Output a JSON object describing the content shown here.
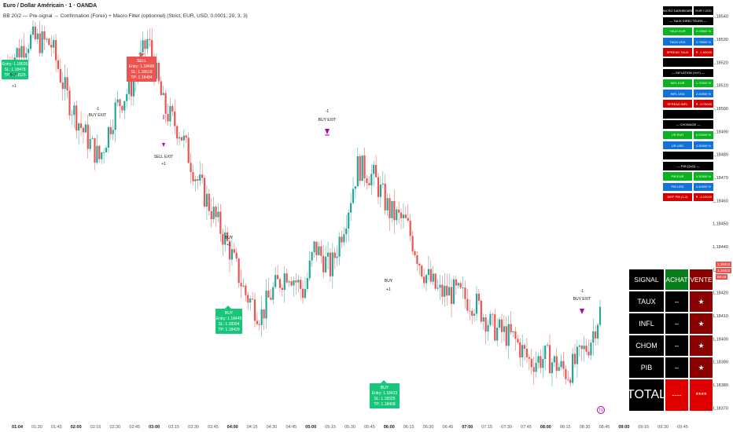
{
  "header": {
    "title": "Euro / Dollar Américain · 1 · OANDA",
    "indicator": "BB 20/2 — Pre-signal → Confirmation (Forex) + Macro Filter (optionnel) (Strict, EUR, USD, 0,0001, 20, 3, 3)"
  },
  "colors": {
    "up": "#26a69a",
    "down": "#ef5350",
    "buy_label": "#18c67a",
    "sell_label": "#ef5350",
    "exit": "#b000b0",
    "green_cell": "#09b21f",
    "blue_cell": "#1272d8",
    "red_cell": "#d40000"
  },
  "chart_data": {
    "type": "candlestick",
    "symbol": "EUR/USD",
    "timeframe": "1",
    "ylim": [
      1.18365,
      1.18545
    ],
    "y_ticks": [
      "1,18540",
      "1,18530",
      "1,18520",
      "1,18510",
      "1,18500",
      "1,18490",
      "1,18480",
      "1,18470",
      "1,18460",
      "1,18450",
      "1,18440",
      "1,18430",
      "1,18420",
      "1,18410",
      "1,18400",
      "1,18390",
      "1,18380",
      "1,18370"
    ],
    "x_ticks": [
      "01:04",
      "01:30",
      "01:45",
      "02:00",
      "02:15",
      "02:30",
      "02:45",
      "03:00",
      "03:15",
      "03:30",
      "03:45",
      "04:00",
      "04:15",
      "04:30",
      "04:45",
      "05:00",
      "05:15",
      "05:30",
      "05:45",
      "06:00",
      "06:15",
      "06:30",
      "06:45",
      "07:00",
      "07:15",
      "07:30",
      "07:45",
      "08:00",
      "08:15",
      "08:30",
      "08:45",
      "09:00",
      "09:15",
      "09:30",
      "09:45"
    ],
    "price_path": [
      [
        0,
        1.1852
      ],
      [
        4,
        1.1853
      ],
      [
        8,
        1.18528
      ],
      [
        11,
        1.18505
      ],
      [
        14,
        1.1849
      ],
      [
        17,
        1.18478
      ],
      [
        20,
        1.185
      ],
      [
        23,
        1.1851
      ],
      [
        26,
        1.1853
      ],
      [
        29,
        1.185
      ],
      [
        32,
        1.1849
      ],
      [
        35,
        1.1847
      ],
      [
        38,
        1.18455
      ],
      [
        41,
        1.1844
      ],
      [
        44,
        1.1842
      ],
      [
        47,
        1.1841
      ],
      [
        49,
        1.1842
      ],
      [
        52,
        1.1843
      ],
      [
        55,
        1.1842
      ],
      [
        57,
        1.1844
      ],
      [
        60,
        1.1843
      ],
      [
        63,
        1.18455
      ],
      [
        65,
        1.18475
      ],
      [
        68,
        1.1847
      ],
      [
        71,
        1.18455
      ],
      [
        74,
        1.1845
      ],
      [
        77,
        1.1843
      ],
      [
        80,
        1.1842
      ],
      [
        83,
        1.1842
      ],
      [
        87,
        1.18415
      ],
      [
        90,
        1.18405
      ],
      [
        94,
        1.184
      ],
      [
        97,
        1.1839
      ],
      [
        100,
        1.18392
      ],
      [
        104,
        1.18385
      ],
      [
        108,
        1.18398
      ],
      [
        110,
        1.18412
      ]
    ],
    "tradingview_notes": "price_path x values are minutes after 06:45? no — indexes in 1-minute bars from 01:04 sampled every ~5 bars",
    "last_price": "1,18412",
    "last_price_countdown": "00:16",
    "last_price_prev": "1,18412",
    "annotations": [
      {
        "type": "buy",
        "text": "Entry: 1.18526\nSL: 1.18478\nTP: 1.18525"
      },
      {
        "type": "sell",
        "text": "SELL\nEntry: 1.18488\nSL: 1.18518\nTP: 1.18484"
      },
      {
        "type": "exit",
        "text": "BUY EXIT"
      },
      {
        "type": "exit",
        "text": "SELL EXIT"
      },
      {
        "type": "exit",
        "text": "BUY EXIT"
      },
      {
        "type": "buy_small",
        "text": "BUY"
      },
      {
        "type": "buy_small",
        "text": "BUY"
      },
      {
        "type": "buy",
        "text": "BUY\nEntry: 1.18445\nSL: 1.18394\nTP: 1.18429"
      },
      {
        "type": "buy",
        "text": "BUY\nEntry: 1.18423\nSL: 1.18325\nTP: 1.18408"
      },
      {
        "type": "exit",
        "text": "BUY EXIT"
      }
    ]
  },
  "chart_labels": {
    "b1_lines": [
      "Entry: 1.18526",
      "SL: 1.18478",
      "TP: 1.18525"
    ],
    "s1_lines": [
      "SELL",
      "Entry: 1.18488",
      "SL: 1.18518",
      "TP: 1.18484"
    ],
    "b2_lines": [
      "BUY",
      "Entry: 1.18445",
      "SL: 1.18394",
      "TP: 1.18429"
    ],
    "b3_lines": [
      "BUY",
      "Entry: 1.18423",
      "SL: 1.18325",
      "TP: 1.18408"
    ],
    "buy": "BUY",
    "buy_exit": "BUY EXIT",
    "sell_exit": "SELL EXIT",
    "plus1": "+1",
    "minus1": "-1",
    "tv_logo": "TV"
  },
  "macro": {
    "header": [
      "MACRO DASHBOARD",
      "EUR / USD"
    ],
    "sections": [
      {
        "title": "— TAUX DIRECTEURS —",
        "rows": [
          {
            "label": "TAUX EUR",
            "value": "2.15000 %",
            "color": "green"
          },
          {
            "label": "TAUX USD",
            "value": "3.75000 %",
            "color": "blue"
          },
          {
            "label": "SPREAD TAUX",
            "value": "▼ -1.60000",
            "color": "red"
          }
        ]
      },
      {
        "title": "— INFLATION (YoY) —",
        "rows": [
          {
            "label": "INFL EUR",
            "value": "1.70000 %",
            "color": "green"
          },
          {
            "label": "INFL USD",
            "value": "2.40000 %",
            "color": "blue"
          },
          {
            "label": "SPREAD INFL",
            "value": "▼ -0.70000",
            "color": "red"
          }
        ]
      },
      {
        "title": "— CHOMAGE —",
        "rows": [
          {
            "label": "UR EUR",
            "value": "6.20000 %",
            "color": "green"
          },
          {
            "label": "UR USD",
            "value": "4.30000 %",
            "color": "blue"
          }
        ]
      },
      {
        "title": "— PIB (QoQ) —",
        "rows": [
          {
            "label": "PIB EUR",
            "value": "0.30000 %",
            "color": "green"
          },
          {
            "label": "PIB USD",
            "value": "4.40000 %",
            "color": "blue"
          },
          {
            "label": "DIFF PIB (1-2)",
            "value": "▼ -4.10000",
            "color": "red"
          }
        ]
      }
    ]
  },
  "signal": {
    "headers": [
      "SIGNAL",
      "ACHAT",
      "VENTE"
    ],
    "rows": [
      {
        "label": "TAUX",
        "achat": "–",
        "vente": "★"
      },
      {
        "label": "INFL",
        "achat": "–",
        "vente": "★"
      },
      {
        "label": "CHOM",
        "achat": "–",
        "vente": "★"
      },
      {
        "label": "PIB",
        "achat": "–",
        "vente": "★"
      }
    ],
    "total": {
      "label": "TOTAL",
      "achat": "----",
      "vente": "****"
    }
  }
}
